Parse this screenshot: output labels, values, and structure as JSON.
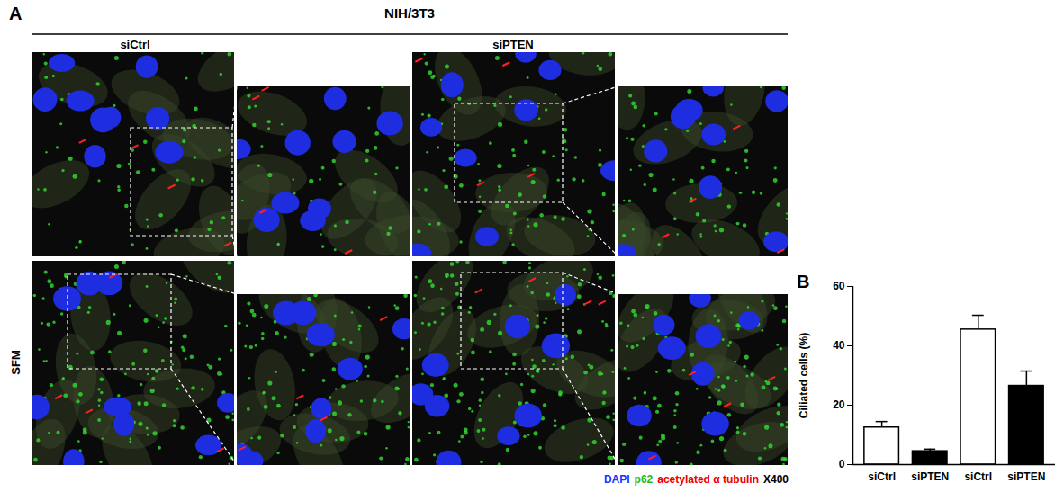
{
  "figure": {
    "panel_a": {
      "label": "A",
      "cell_line": "NIH/3T3",
      "columns": [
        "siCtrl",
        "siPTEN"
      ],
      "row_label": "SFM",
      "stain_legend": [
        {
          "text": "DAPI",
          "color": "#2233ff"
        },
        {
          "text": "p62",
          "color": "#22bb22"
        },
        {
          "text": "acetylated α tubulin",
          "color": "#ee0000"
        },
        {
          "text": "X400",
          "color": "#000000"
        }
      ]
    },
    "panel_b": {
      "label": "B"
    }
  },
  "chart_data": {
    "type": "bar",
    "y_label": "Ciliated cells (%)",
    "categories": [
      "siCtrl",
      "siPTEN",
      "siCtrl",
      "siPTEN"
    ],
    "values": [
      12.5,
      4.5,
      45.5,
      26.5
    ],
    "errors": [
      2,
      0.7,
      4.8,
      5
    ],
    "colors": [
      "#ffffff",
      "#000000",
      "#ffffff",
      "#000000"
    ],
    "ylim": [
      0,
      60
    ],
    "yticks": [
      0,
      20,
      40,
      60
    ],
    "grid": false
  }
}
